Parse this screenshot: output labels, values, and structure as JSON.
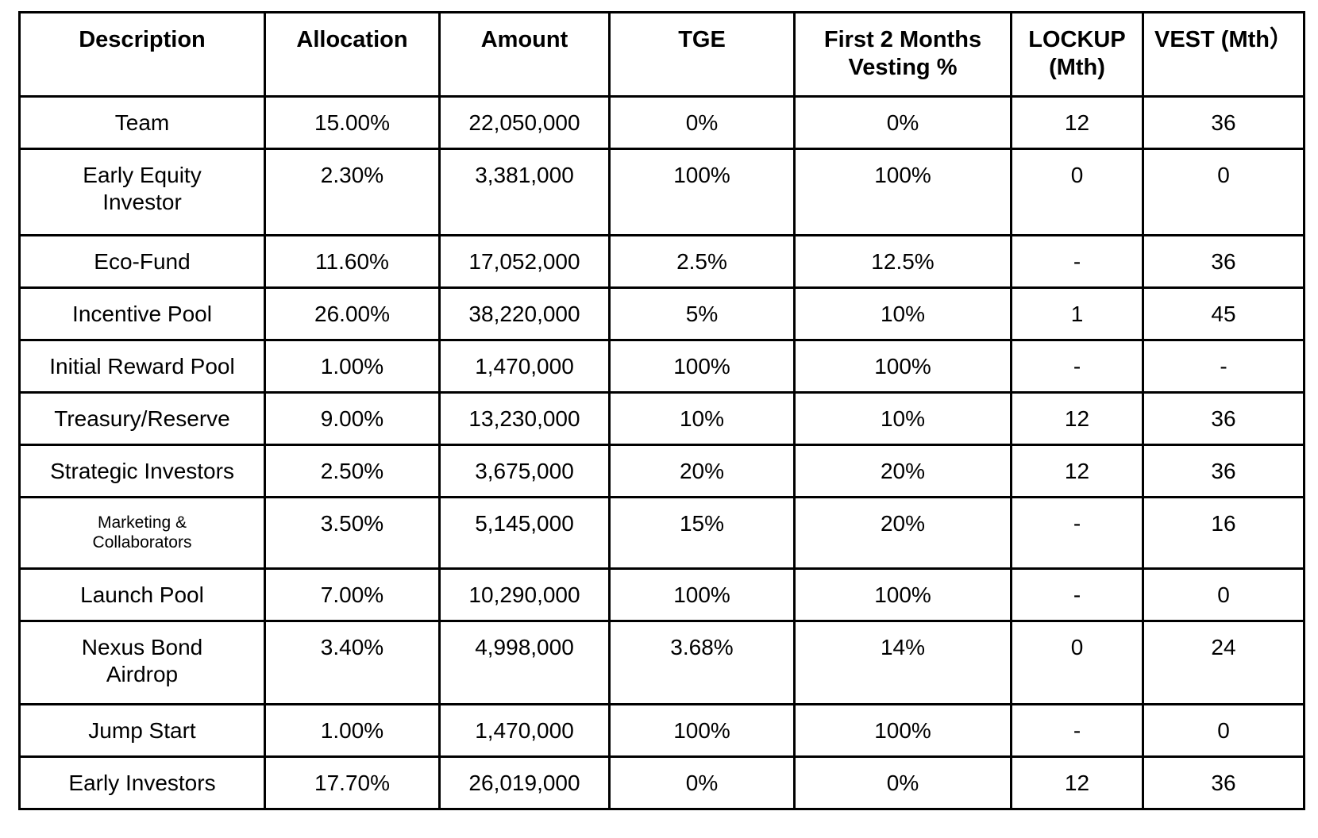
{
  "table": {
    "title": "token-allocation-vesting-table",
    "colors": {
      "border": "#000000",
      "text": "#000000",
      "background": "#ffffff"
    },
    "columns": [
      "Description",
      "Allocation",
      "Amount",
      "TGE",
      "First 2 Months\nVesting %",
      "LOCKUP\n(Mth)",
      "VEST (Mth）"
    ],
    "rows": [
      {
        "description": "Team",
        "allocation": "15.00%",
        "amount": "22,050,000",
        "tge": "0%",
        "first_2_months_vesting": "0%",
        "lockup": "12",
        "vest": "36"
      },
      {
        "description": "Early Equity\nInvestor",
        "allocation": "2.30%",
        "amount": "3,381,000",
        "tge": "100%",
        "first_2_months_vesting": "100%",
        "lockup": "0",
        "vest": "0"
      },
      {
        "description": "Eco-Fund",
        "allocation": "11.60%",
        "amount": "17,052,000",
        "tge": "2.5%",
        "first_2_months_vesting": "12.5%",
        "lockup": "-",
        "vest": "36"
      },
      {
        "description": "Incentive Pool",
        "allocation": "26.00%",
        "amount": "38,220,000",
        "tge": "5%",
        "first_2_months_vesting": "10%",
        "lockup": "1",
        "vest": "45"
      },
      {
        "description": "Initial Reward Pool",
        "allocation": "1.00%",
        "amount": "1,470,000",
        "tge": "100%",
        "first_2_months_vesting": "100%",
        "lockup": "-",
        "vest": "-"
      },
      {
        "description": "Treasury/Reserve",
        "allocation": "9.00%",
        "amount": "13,230,000",
        "tge": "10%",
        "first_2_months_vesting": "10%",
        "lockup": "12",
        "vest": "36"
      },
      {
        "description": "Strategic Investors",
        "allocation": "2.50%",
        "amount": "3,675,000",
        "tge": "20%",
        "first_2_months_vesting": "20%",
        "lockup": "12",
        "vest": "36"
      },
      {
        "description": "Marketing &\nCollaborators",
        "allocation": "3.50%",
        "amount": "5,145,000",
        "tge": "15%",
        "first_2_months_vesting": "20%",
        "lockup": "-",
        "vest": "16"
      },
      {
        "description": "Launch Pool",
        "allocation": "7.00%",
        "amount": "10,290,000",
        "tge": "100%",
        "first_2_months_vesting": "100%",
        "lockup": "-",
        "vest": "0"
      },
      {
        "description": "Nexus Bond\nAirdrop",
        "allocation": "3.40%",
        "amount": "4,998,000",
        "tge": "3.68%",
        "first_2_months_vesting": "14%",
        "lockup": "0",
        "vest": "24"
      },
      {
        "description": "Jump Start",
        "allocation": "1.00%",
        "amount": "1,470,000",
        "tge": "100%",
        "first_2_months_vesting": "100%",
        "lockup": "-",
        "vest": "0"
      },
      {
        "description": "Early Investors",
        "allocation": "17.70%",
        "amount": "26,019,000",
        "tge": "0%",
        "first_2_months_vesting": "0%",
        "lockup": "12",
        "vest": "36"
      }
    ]
  }
}
